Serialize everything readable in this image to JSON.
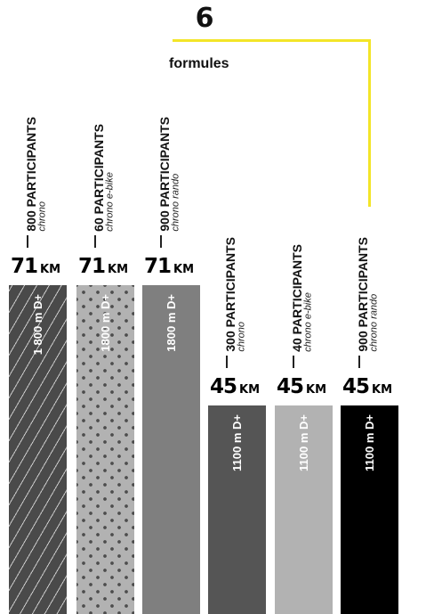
{
  "headline": {
    "number": "6",
    "word": "formules"
  },
  "colors": {
    "accent_line": "#f3e528"
  },
  "chart_data": {
    "type": "bar",
    "categories": [
      "chrono",
      "chrono e-bike",
      "chrono rando",
      "chrono",
      "chrono e-bike",
      "chrono rando"
    ],
    "bars": [
      {
        "participants_text": "800 PARTICIPANTS",
        "participants": 800,
        "formula": "chrono",
        "distance_km": 71,
        "distance_text": "71",
        "km_unit": "KM",
        "elevation_text": "1 800 m D+",
        "elevation_m": 1800,
        "fill": "#4a4a4a",
        "pattern": "diagonal-stripes"
      },
      {
        "participants_text": "60 PARTICIPANTS",
        "participants": 60,
        "formula": "chrono e-bike",
        "distance_km": 71,
        "distance_text": "71",
        "km_unit": "KM",
        "elevation_text": "1800 m D+",
        "elevation_m": 1800,
        "fill": "#b2b2b2",
        "pattern": "dots"
      },
      {
        "participants_text": "900 PARTICIPANTS",
        "participants": 900,
        "formula": "chrono rando",
        "distance_km": 71,
        "distance_text": "71",
        "km_unit": "KM",
        "elevation_text": "1800 m D+",
        "elevation_m": 1800,
        "fill": "#7f7f7f",
        "pattern": "solid"
      },
      {
        "participants_text": "300 PARTICIPANTS",
        "participants": 300,
        "formula": "chrono",
        "distance_km": 45,
        "distance_text": "45",
        "km_unit": "KM",
        "elevation_text": "1100 m D+",
        "elevation_m": 1100,
        "fill": "#555555",
        "pattern": "solid"
      },
      {
        "participants_text": "40 PARTICIPANTS",
        "participants": 40,
        "formula": "chrono e-bike",
        "distance_km": 45,
        "distance_text": "45",
        "km_unit": "KM",
        "elevation_text": "1100 m D+",
        "elevation_m": 1100,
        "fill": "#b2b2b2",
        "pattern": "solid"
      },
      {
        "participants_text": "900 PARTICIPANTS",
        "participants": 900,
        "formula": "chrono rando",
        "distance_km": 45,
        "distance_text": "45",
        "km_unit": "KM",
        "elevation_text": "1100 m D+",
        "elevation_m": 1100,
        "fill": "#000000",
        "pattern": "solid"
      }
    ],
    "value_axis": "distance_km",
    "ylim": [
      0,
      71
    ]
  }
}
